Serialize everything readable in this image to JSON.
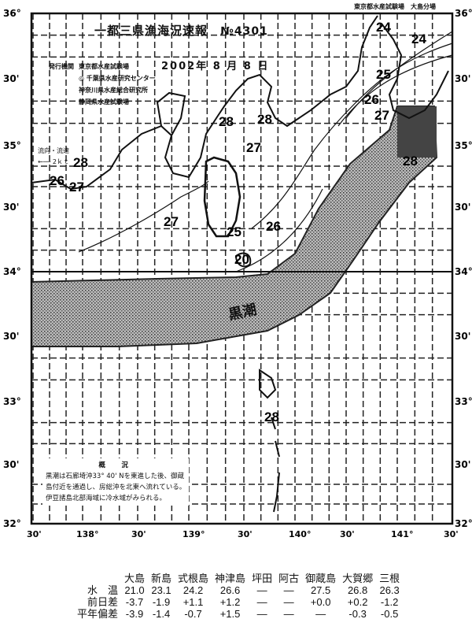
{
  "header": {
    "title": "一都三県漁海況速報",
    "issue_number": "№4301",
    "date": "2002年 8 月 8 日",
    "publisher_label": "発行機関",
    "publishers": [
      "東京都水産試験場",
      "◎ 千葉県水産研究センター",
      "神奈川県水産総合研究所",
      "静岡県水産試験場"
    ],
    "top_right_note": "東京都水産試験場　大島分場"
  },
  "legend": {
    "label": "流向・流速",
    "arrow_text": "←── 2ｋｔ"
  },
  "axes": {
    "latitudes_left": [
      "36°",
      "30'",
      "35°",
      "30'",
      "34°",
      "30'",
      "33°",
      "30'",
      "32°"
    ],
    "longitudes": [
      "30'",
      "138°",
      "30'",
      "139°",
      "30'",
      "140°",
      "30'",
      "141°",
      "30'"
    ]
  },
  "map": {
    "current_label": "黒潮",
    "isotherm_labels": [
      "24",
      "24",
      "25",
      "26",
      "27",
      "28",
      "28",
      "27",
      "28",
      "26",
      "27",
      "27",
      "25",
      "26",
      "20",
      "28",
      "28"
    ],
    "colors": {
      "kuroshio": "#8a8a8a",
      "ink": "#111111"
    }
  },
  "summary": {
    "heading": "概　況",
    "lines": [
      "黒潮は石廊埼沖33° 40' Nを東進した後、御蔵",
      "島付近を通過し、房総沖を北東へ流れている。",
      "伊豆諸島北部海域に冷水域がみられる。"
    ]
  },
  "stations": {
    "columns": [
      "大島",
      "新島",
      "式根島",
      "神津島",
      "坪田",
      "阿古",
      "御蔵島",
      "大賀郷",
      "三根"
    ],
    "rows": [
      {
        "label": "水　温",
        "values": [
          "21.0",
          "23.1",
          "24.2",
          "26.6",
          "—",
          "—",
          "27.5",
          "26.8",
          "26.3"
        ]
      },
      {
        "label": "前日差",
        "values": [
          "-3.7",
          "-1.9",
          "+1.1",
          "+1.2",
          "—",
          "—",
          "+0.0",
          "+0.2",
          "-1.2"
        ]
      },
      {
        "label": "平年偏差",
        "values": [
          "-3.9",
          "-1.4",
          "-0.7",
          "+1.5",
          "—",
          "—",
          "—",
          "-0.3",
          "-0.5"
        ]
      }
    ]
  }
}
